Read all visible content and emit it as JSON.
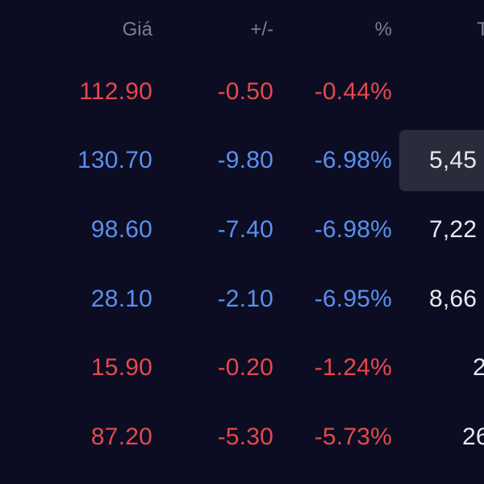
{
  "columns": {
    "price": "Giá",
    "change": "+/-",
    "percent": "%",
    "col4": "T"
  },
  "colors": {
    "background": "#0c0d22",
    "down": "#e5484d",
    "floor": "#5a8ff0",
    "neutral": "#e8e9ee",
    "header": "#7c7e8c",
    "highlight": "#2a2b3b"
  },
  "rows": [
    {
      "price": "112.90",
      "change": "-0.50",
      "percent": "-0.44%",
      "col4": "",
      "status": "down"
    },
    {
      "price": "130.70",
      "change": "-9.80",
      "percent": "-6.98%",
      "col4": "5,45",
      "status": "floor",
      "highlighted": true
    },
    {
      "price": "98.60",
      "change": "-7.40",
      "percent": "-6.98%",
      "col4": "7,22",
      "status": "floor"
    },
    {
      "price": "28.10",
      "change": "-2.10",
      "percent": "-6.95%",
      "col4": "8,66",
      "status": "floor"
    },
    {
      "price": "15.90",
      "change": "-0.20",
      "percent": "-1.24%",
      "col4": "2",
      "status": "down"
    },
    {
      "price": "87.20",
      "change": "-5.30",
      "percent": "-5.73%",
      "col4": "26",
      "status": "down"
    }
  ]
}
